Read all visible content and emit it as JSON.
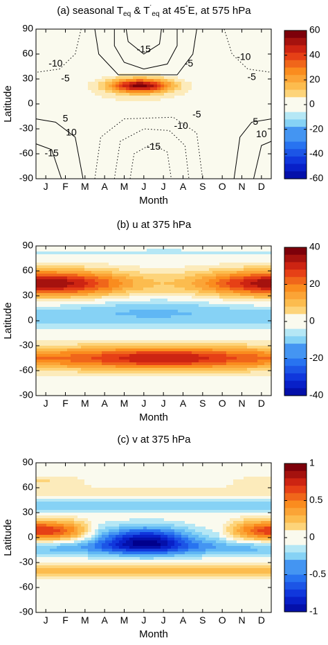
{
  "chart_data": [
    {
      "type": "heatmap",
      "panel": "(a)",
      "title_parts": {
        "prefix": "(a) seasonal T",
        "sub1": "eq",
        "mid": " & T",
        "sup": "´",
        "sub2": "eq",
        "tail_a": " at 45",
        "degree": "°",
        "tail_b": "E, at 575 hPa"
      },
      "xlabel": "Month",
      "ylabel": "Latitude",
      "x_categories": [
        "J",
        "F",
        "M",
        "A",
        "M",
        "J",
        "J",
        "A",
        "S",
        "O",
        "N",
        "D"
      ],
      "yticks": [
        90,
        60,
        30,
        0,
        -30,
        -60,
        -90
      ],
      "ylim": [
        -90,
        90
      ],
      "colorbar": {
        "min": -60,
        "max": 60,
        "ticks": [
          60,
          40,
          20,
          0,
          -20,
          -40,
          -60
        ]
      },
      "contour_labels": [
        {
          "text": "-10",
          "month": 1.0,
          "lat": 48
        },
        {
          "text": "-5",
          "month": 1.5,
          "lat": 30
        },
        {
          "text": "-15",
          "month": 5.5,
          "lat": 65
        },
        {
          "text": "-5",
          "month": 7.8,
          "lat": 48
        },
        {
          "text": "-10",
          "month": 10.6,
          "lat": 56
        },
        {
          "text": "-5",
          "month": 11.0,
          "lat": 32
        },
        {
          "text": "5",
          "month": 1.5,
          "lat": -18
        },
        {
          "text": "10",
          "month": 1.8,
          "lat": -35
        },
        {
          "text": "-15",
          "month": 0.8,
          "lat": -60
        },
        {
          "text": "-5",
          "month": 8.2,
          "lat": -13
        },
        {
          "text": "-10",
          "month": 7.4,
          "lat": -27
        },
        {
          "text": "-15",
          "month": 6.0,
          "lat": -52
        },
        {
          "text": "5",
          "month": 11.2,
          "lat": -22
        },
        {
          "text": "10",
          "month": 11.5,
          "lat": -37
        }
      ]
    },
    {
      "type": "heatmap",
      "panel": "(b)",
      "title": "(b) u at 375 hPa",
      "xlabel": "Month",
      "ylabel": "Latitude",
      "x_categories": [
        "J",
        "F",
        "M",
        "A",
        "M",
        "J",
        "J",
        "A",
        "S",
        "O",
        "N",
        "D"
      ],
      "yticks": [
        90,
        60,
        30,
        0,
        -30,
        -60,
        -90
      ],
      "ylim": [
        -90,
        90
      ],
      "colorbar": {
        "min": -40,
        "max": 40,
        "ticks": [
          40,
          20,
          0,
          -20,
          -40
        ]
      }
    },
    {
      "type": "heatmap",
      "panel": "(c)",
      "title": "(c) v at 375 hPa",
      "xlabel": "Month",
      "ylabel": "Latitude",
      "x_categories": [
        "J",
        "F",
        "M",
        "A",
        "M",
        "J",
        "J",
        "A",
        "S",
        "O",
        "N",
        "D"
      ],
      "yticks": [
        90,
        60,
        30,
        0,
        -30,
        -60,
        -90
      ],
      "ylim": [
        -90,
        90
      ],
      "colorbar": {
        "min": -1,
        "max": 1,
        "ticks": [
          1,
          0.5,
          0,
          -0.5,
          -1
        ]
      }
    }
  ]
}
